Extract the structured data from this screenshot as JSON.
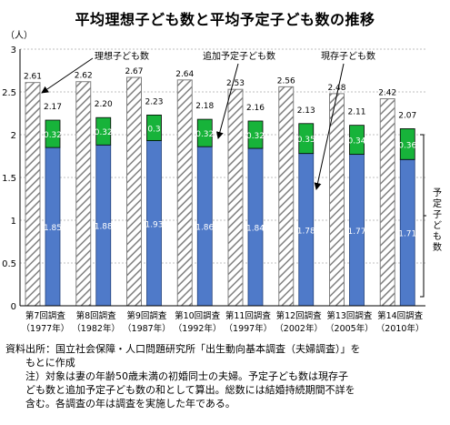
{
  "title": "平均理想子ども数と平均予定子ども数の推移",
  "unit_label": "（人）",
  "right_label": "予定子ども数",
  "annotations": {
    "ideal": "理想子ども数",
    "additional": "追加予定子ども数",
    "current": "現存子ども数"
  },
  "notes": {
    "source": "資料出所：国立社会保障・人口問題研究所「出生動向基本調査（夫婦調査）」を",
    "source_cont": "もとに作成",
    "note1": "注）対象は妻の年齢50歳未満の初婚同士の夫婦。予定子ども数は現存子",
    "note2": "ども数と追加予定子ども数の和として算出。総数には結婚持続期間不詳を",
    "note3": "含む。各調査の年は調査を実施した年である。"
  },
  "colors": {
    "current": "#4f7ac9",
    "additional": "#17b33a",
    "ideal_hatch": "#808080",
    "grid": "#bfbfbf"
  },
  "chart_data": {
    "type": "bar",
    "ylim": [
      0,
      3
    ],
    "yticks": [
      "0",
      "0.5",
      "1",
      "1.5",
      "2",
      "2.5",
      "3"
    ],
    "categories": [
      [
        "第7回調査",
        "（1977年）"
      ],
      [
        "第8回調査",
        "（1982年）"
      ],
      [
        "第9回調査",
        "（1987年）"
      ],
      [
        "第10回調査",
        "（1992年）"
      ],
      [
        "第11回調査",
        "（1997年）"
      ],
      [
        "第12回調査",
        "（2002年）"
      ],
      [
        "第13回調査",
        "（2005年）"
      ],
      [
        "第14回調査",
        "（2010年）"
      ]
    ],
    "series": [
      {
        "name": "理想子ども数",
        "values": [
          2.61,
          2.62,
          2.67,
          2.64,
          2.53,
          2.56,
          2.48,
          2.42
        ]
      },
      {
        "name": "現存子ども数",
        "values": [
          1.85,
          1.88,
          1.93,
          1.86,
          1.84,
          1.78,
          1.77,
          1.71
        ]
      },
      {
        "name": "追加予定子ども数",
        "values": [
          0.32,
          0.32,
          0.3,
          0.32,
          0.32,
          0.35,
          0.34,
          0.36
        ]
      }
    ],
    "planned_totals": [
      2.17,
      2.2,
      2.23,
      2.18,
      2.16,
      2.13,
      2.11,
      2.07
    ],
    "ideal_labels": [
      "2.61",
      "2.62",
      "2.67",
      "2.64",
      "2.53",
      "2.56",
      "2.48",
      "2.42"
    ],
    "current_labels": [
      "1.85",
      "1.88",
      "1.93",
      "1.86",
      "1.84",
      "1.78",
      "1.77",
      "1.71"
    ],
    "additional_labels": [
      "0.32",
      "0.32",
      "0.3",
      "0.32",
      "0.32",
      "0.35",
      "0.34",
      "0.36"
    ],
    "planned_labels": [
      "2.17",
      "2.20",
      "2.23",
      "2.18",
      "2.16",
      "2.13",
      "2.11",
      "2.07"
    ],
    "grid": true
  }
}
